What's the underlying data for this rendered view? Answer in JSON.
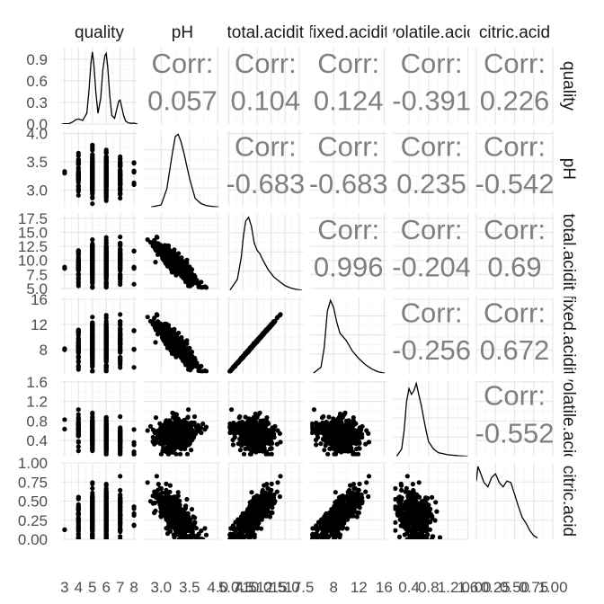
{
  "chart_data": {
    "type": "scatter",
    "variables": [
      "quality",
      "pH",
      "total.acidity",
      "fixed.acidity",
      "volatile.acidity",
      "citric.acid"
    ],
    "strip_labels": [
      "quality",
      "pH",
      "total.acidit",
      "fixed.acidit",
      "volatile.acid",
      "citric.acid"
    ],
    "corr_label": "Corr:",
    "corr_values": [
      {
        "row": 0,
        "col": 1,
        "value": "0.057"
      },
      {
        "row": 0,
        "col": 2,
        "value": "0.104"
      },
      {
        "row": 0,
        "col": 3,
        "value": "0.124"
      },
      {
        "row": 0,
        "col": 4,
        "value": "-0.391"
      },
      {
        "row": 0,
        "col": 5,
        "value": "0.226"
      },
      {
        "row": 1,
        "col": 2,
        "value": "-0.683"
      },
      {
        "row": 1,
        "col": 3,
        "value": "-0.683"
      },
      {
        "row": 1,
        "col": 4,
        "value": "0.235"
      },
      {
        "row": 1,
        "col": 5,
        "value": "-0.542"
      },
      {
        "row": 2,
        "col": 3,
        "value": "0.996"
      },
      {
        "row": 2,
        "col": 4,
        "value": "-0.204"
      },
      {
        "row": 2,
        "col": 5,
        "value": "0.69"
      },
      {
        "row": 3,
        "col": 4,
        "value": "-0.256"
      },
      {
        "row": 3,
        "col": 5,
        "value": "0.672"
      },
      {
        "row": 4,
        "col": 5,
        "value": "-0.552"
      }
    ],
    "ranges": [
      [
        2.75,
        8.25
      ],
      [
        2.7,
        4.05
      ],
      [
        4.7,
        18.3
      ],
      [
        4.3,
        16.4
      ],
      [
        0.08,
        1.64
      ],
      [
        0,
        1
      ]
    ],
    "y_ticks": [
      {
        "values": [
          0.0,
          0.3,
          0.6,
          0.9
        ],
        "labels": [
          "0.0",
          "0.3",
          "0.6",
          "0.9"
        ],
        "domain": [
          0,
          1.06
        ]
      },
      {
        "values": [
          3.0,
          3.5,
          4.0
        ],
        "labels": [
          "3.0",
          "3.5",
          "4.0"
        ]
      },
      {
        "values": [
          5.0,
          7.5,
          10.0,
          12.5,
          15.0,
          17.5
        ],
        "labels": [
          "5.0",
          "7.5",
          "10.0",
          "12.5",
          "15.0",
          "17.5"
        ]
      },
      {
        "values": [
          8,
          12,
          16
        ],
        "labels": [
          "8",
          "12",
          "16"
        ]
      },
      {
        "values": [
          0.4,
          0.8,
          1.2,
          1.6
        ],
        "labels": [
          "0.4",
          "0.8",
          "1.2",
          "1.6"
        ]
      },
      {
        "values": [
          0.0,
          0.25,
          0.5,
          0.75,
          1.0
        ],
        "labels": [
          "0.00",
          "0.25",
          "0.50",
          "0.75",
          "1.00"
        ]
      }
    ],
    "x_ticks": [
      {
        "values": [
          3,
          4,
          5,
          6,
          7,
          8
        ],
        "labels": [
          "3",
          "4",
          "5",
          "6",
          "7",
          "8"
        ]
      },
      {
        "values": [
          3.0,
          3.5,
          4.0,
          4.5
        ],
        "labels": [
          "3.0",
          "3.5",
          "4.0",
          "4.5"
        ]
      },
      {
        "values": [
          5.0,
          7.5,
          10.0,
          12.5,
          15.0,
          17.5
        ],
        "labels": [
          "5.0",
          "7.5",
          "10.0",
          "12.5",
          "15.0",
          "17.5"
        ]
      },
      {
        "values": [
          8,
          12,
          16
        ],
        "labels": [
          "8",
          "12",
          "16"
        ]
      },
      {
        "values": [
          0.4,
          0.8,
          1.2,
          1.6
        ],
        "labels": [
          "0.4",
          "0.8",
          "1.2",
          "1.6"
        ]
      },
      {
        "values": [
          0.0,
          0.25,
          0.5,
          0.75,
          1.0
        ],
        "labels": [
          "0.00",
          "0.25",
          "0.50",
          "0.75",
          "1.00"
        ]
      }
    ],
    "quality_density": {
      "x": [
        2.8,
        3.0,
        3.3,
        3.6,
        3.8,
        4.0,
        4.3,
        4.6,
        4.75,
        4.9,
        5.0,
        5.1,
        5.25,
        5.4,
        5.6,
        5.75,
        5.9,
        6.0,
        6.1,
        6.25,
        6.4,
        6.6,
        6.75,
        6.9,
        7.0,
        7.1,
        7.25,
        7.4,
        7.6,
        7.8,
        8.0,
        8.25
      ],
      "y": [
        0.0,
        0.005,
        0.004,
        0.03,
        0.06,
        0.07,
        0.05,
        0.15,
        0.45,
        0.85,
        1.0,
        0.85,
        0.45,
        0.15,
        0.35,
        0.75,
        0.95,
        0.98,
        0.8,
        0.4,
        0.12,
        0.08,
        0.2,
        0.32,
        0.33,
        0.25,
        0.12,
        0.04,
        0.015,
        0.01,
        0.012,
        0.0
      ]
    },
    "densities": [
      null,
      {
        "x": [
          2.82,
          3.0,
          3.1,
          3.2,
          3.25,
          3.3,
          3.35,
          3.4,
          3.5,
          3.6,
          3.7,
          3.8,
          3.9,
          4.02
        ],
        "y": [
          0.0,
          0.03,
          0.25,
          0.75,
          0.97,
          1.0,
          0.9,
          0.75,
          0.4,
          0.12,
          0.05,
          0.02,
          0.01,
          0.0
        ]
      },
      {
        "x": [
          5.2,
          6.5,
          7.2,
          7.6,
          8.0,
          8.5,
          9.0,
          9.5,
          10.0,
          10.5,
          11.0,
          12.0,
          13.0,
          14.0,
          15.0,
          16.0,
          17.0,
          18.0
        ],
        "y": [
          0.0,
          0.15,
          0.45,
          0.75,
          0.95,
          1.0,
          0.88,
          0.65,
          0.55,
          0.5,
          0.42,
          0.28,
          0.18,
          0.12,
          0.06,
          0.03,
          0.01,
          0.0
        ]
      },
      {
        "x": [
          4.8,
          6.0,
          6.5,
          7.0,
          7.5,
          8.0,
          8.5,
          9.0,
          9.5,
          10.0,
          11.0,
          12.0,
          13.0,
          14.0,
          15.0,
          16.1
        ],
        "y": [
          0.0,
          0.08,
          0.35,
          0.85,
          1.0,
          0.9,
          0.7,
          0.55,
          0.5,
          0.45,
          0.3,
          0.2,
          0.12,
          0.06,
          0.02,
          0.0
        ]
      },
      {
        "x": [
          0.15,
          0.25,
          0.3,
          0.35,
          0.4,
          0.45,
          0.5,
          0.55,
          0.6,
          0.65,
          0.7,
          0.75,
          0.8,
          0.9,
          1.0,
          1.2,
          1.4,
          1.6
        ],
        "y": [
          0.0,
          0.1,
          0.35,
          0.75,
          0.93,
          0.85,
          0.9,
          1.0,
          0.85,
          0.7,
          0.52,
          0.35,
          0.2,
          0.1,
          0.05,
          0.02,
          0.008,
          0.0
        ]
      },
      {
        "x": [
          0.0,
          0.02,
          0.05,
          0.1,
          0.15,
          0.2,
          0.25,
          0.3,
          0.35,
          0.4,
          0.45,
          0.5,
          0.55,
          0.6,
          0.65,
          0.7,
          0.75,
          0.8
        ],
        "y": [
          0.8,
          1.0,
          0.92,
          0.78,
          0.72,
          0.85,
          0.9,
          0.78,
          0.72,
          0.8,
          0.78,
          0.62,
          0.45,
          0.3,
          0.22,
          0.12,
          0.05,
          0.02
        ]
      }
    ],
    "pair_models": {
      "r0": [
        5.4,
        0.8
      ],
      "r1": [
        3.31,
        0.155
      ],
      "r2": [
        9.0,
        2.0
      ],
      "r3": [
        8.3,
        1.75
      ],
      "r4": [
        0.53,
        0.18
      ],
      "r5": [
        0.27,
        0.195
      ]
    },
    "colors": {
      "grid_minor": "#f2f2f2",
      "grid_major": "#e5e5e5",
      "point": "#000000",
      "line": "#000000",
      "corr_text": "#7f7f7f",
      "tick_text": "#4d4d4d",
      "strip_text": "#1a1a1a"
    },
    "grid": true,
    "legend": "none"
  }
}
